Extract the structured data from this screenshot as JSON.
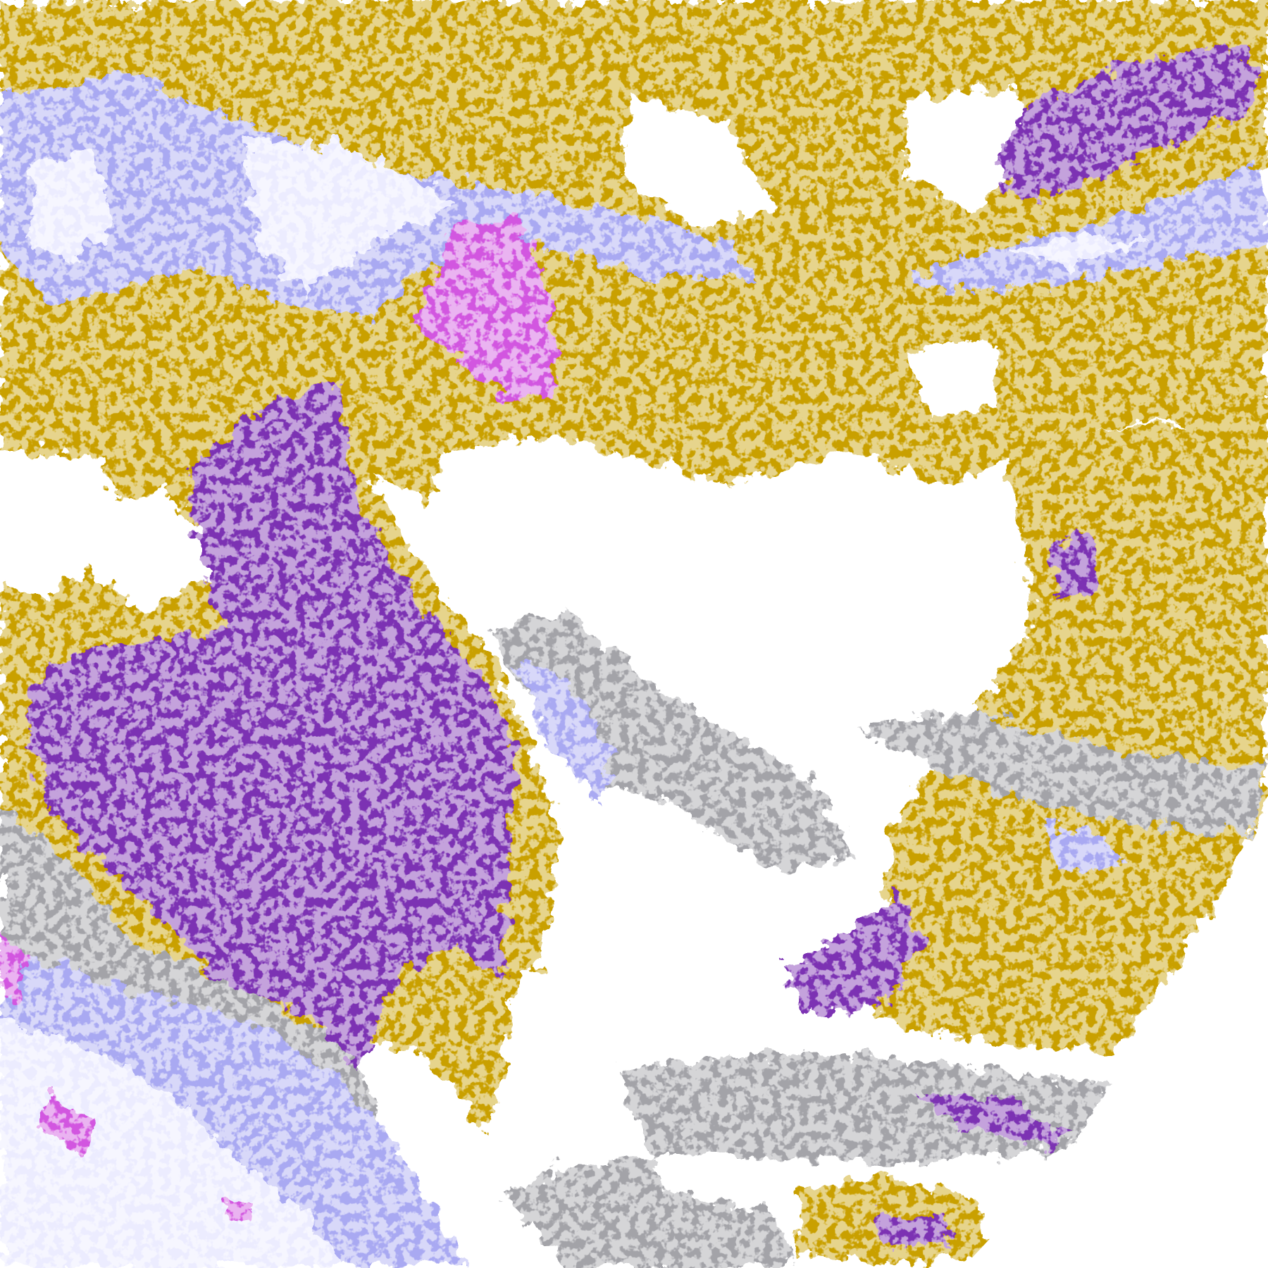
{
  "colors": {
    "background": "#ffffff",
    "gold": "#c9a000",
    "purple": "#7b33b3",
    "magenta": "#d257e0",
    "lavender": "#a9a9f2",
    "pale": "#ececff",
    "gray": "#a3a3a8"
  }
}
